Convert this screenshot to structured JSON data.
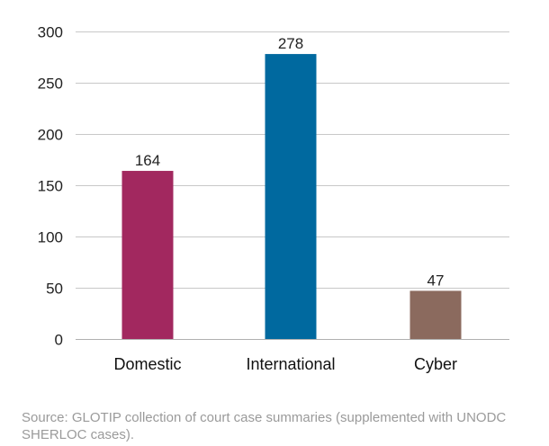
{
  "chart_data": {
    "type": "bar",
    "categories": [
      "Domestic",
      "International",
      "Cyber"
    ],
    "values": [
      164,
      278,
      47
    ],
    "data_labels": [
      "164",
      "278",
      "47"
    ],
    "colors": [
      "#a2285f",
      "#00699f",
      "#8b6a5e"
    ],
    "ylim": [
      0,
      300
    ],
    "yticks": [
      0,
      50,
      100,
      150,
      200,
      250,
      300
    ],
    "ytick_labels": [
      "0",
      "50",
      "100",
      "150",
      "200",
      "250",
      "300"
    ],
    "grid": true,
    "grid_color": "#c8c8c8",
    "axis_color": "#b0b0b0"
  },
  "source_note": "Source: GLOTIP collection of court case summaries (supplemented with UNODC SHERLOC cases)."
}
